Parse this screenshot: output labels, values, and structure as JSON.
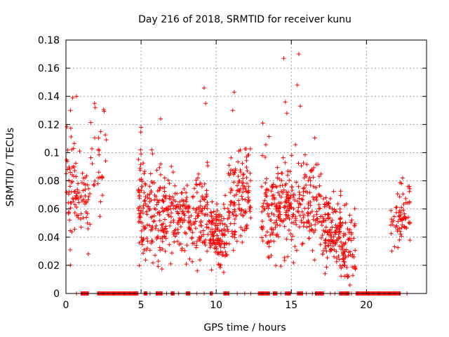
{
  "chart_data": {
    "type": "scatter",
    "title": "Day 216 of 2018, SRMTID for receiver kunu",
    "xlabel": "GPS time / hours",
    "ylabel": "SRMTID / TECUs",
    "xlim": [
      0,
      24
    ],
    "ylim": [
      0,
      0.18
    ],
    "x_ticks": [
      0,
      5,
      10,
      15,
      20
    ],
    "x_tick_labels": [
      "0",
      "5",
      "10",
      "15",
      "20"
    ],
    "y_ticks": [
      0,
      0.02,
      0.04,
      0.06,
      0.08,
      0.1,
      0.12,
      0.14,
      0.16,
      0.18
    ],
    "y_tick_labels": [
      "0",
      "0.02",
      "0.04",
      "0.06",
      "0.08",
      "0.1",
      "0.12",
      "0.14",
      "0.16",
      "0.18"
    ],
    "grid": true,
    "marker": "+",
    "color": "#ff0000",
    "clusters": [
      {
        "x_range": [
          0.0,
          0.7
        ],
        "y_mean": 0.075,
        "y_sd": 0.018,
        "count": 55
      },
      {
        "x_range": [
          0.7,
          1.6
        ],
        "y_mean": 0.068,
        "y_sd": 0.016,
        "count": 45
      },
      {
        "x_range": [
          1.6,
          2.8
        ],
        "y_mean": 0.085,
        "y_sd": 0.018,
        "count": 28
      },
      {
        "x_range": [
          4.8,
          6.0
        ],
        "y_mean": 0.062,
        "y_sd": 0.019,
        "count": 110
      },
      {
        "x_range": [
          6.0,
          7.5
        ],
        "y_mean": 0.055,
        "y_sd": 0.014,
        "count": 120
      },
      {
        "x_range": [
          7.5,
          9.5
        ],
        "y_mean": 0.055,
        "y_sd": 0.014,
        "count": 150
      },
      {
        "x_range": [
          9.5,
          10.8
        ],
        "y_mean": 0.043,
        "y_sd": 0.011,
        "count": 120
      },
      {
        "x_range": [
          10.8,
          12.3
        ],
        "y_mean": 0.066,
        "y_sd": 0.018,
        "count": 130
      },
      {
        "x_range": [
          13.0,
          14.3
        ],
        "y_mean": 0.058,
        "y_sd": 0.016,
        "count": 110
      },
      {
        "x_range": [
          14.3,
          15.4
        ],
        "y_mean": 0.062,
        "y_sd": 0.015,
        "count": 90
      },
      {
        "x_range": [
          15.4,
          17.0
        ],
        "y_mean": 0.06,
        "y_sd": 0.017,
        "count": 110
      },
      {
        "x_range": [
          17.0,
          18.3
        ],
        "y_mean": 0.046,
        "y_sd": 0.012,
        "count": 130
      },
      {
        "x_range": [
          18.3,
          19.3
        ],
        "y_mean": 0.03,
        "y_sd": 0.012,
        "count": 70
      },
      {
        "x_range": [
          21.6,
          22.2
        ],
        "y_mean": 0.05,
        "y_sd": 0.009,
        "count": 25
      },
      {
        "x_range": [
          22.2,
          22.9
        ],
        "y_mean": 0.058,
        "y_sd": 0.012,
        "count": 45
      }
    ],
    "outliers": [
      {
        "x": 0.45,
        "y": 0.139
      },
      {
        "x": 0.7,
        "y": 0.14
      },
      {
        "x": 0.3,
        "y": 0.13
      },
      {
        "x": 1.9,
        "y": 0.135
      },
      {
        "x": 1.95,
        "y": 0.132
      },
      {
        "x": 9.2,
        "y": 0.146
      },
      {
        "x": 9.3,
        "y": 0.135
      },
      {
        "x": 11.2,
        "y": 0.143
      },
      {
        "x": 11.1,
        "y": 0.13
      },
      {
        "x": 14.5,
        "y": 0.167
      },
      {
        "x": 15.5,
        "y": 0.17
      },
      {
        "x": 15.4,
        "y": 0.148
      },
      {
        "x": 15.6,
        "y": 0.133
      },
      {
        "x": 14.6,
        "y": 0.136
      },
      {
        "x": 14.7,
        "y": 0.128
      },
      {
        "x": 13.1,
        "y": 0.121
      },
      {
        "x": 5.0,
        "y": 0.118
      },
      {
        "x": 6.3,
        "y": 0.124
      },
      {
        "x": 18.9,
        "y": 0.006
      },
      {
        "x": 18.8,
        "y": 0.012
      },
      {
        "x": 10.5,
        "y": 0.015
      }
    ],
    "zero_segments": [
      [
        1.0,
        1.5
      ],
      [
        2.1,
        4.8
      ],
      [
        5.2,
        5.4
      ],
      [
        6.0,
        6.4
      ],
      [
        7.0,
        7.2
      ],
      [
        8.0,
        8.3
      ],
      [
        9.6,
        9.8
      ],
      [
        10.5,
        10.9
      ],
      [
        12.8,
        13.6
      ],
      [
        13.8,
        14.1
      ],
      [
        14.6,
        15.0
      ],
      [
        15.4,
        15.8
      ],
      [
        16.6,
        17.2
      ],
      [
        18.2,
        18.9
      ],
      [
        19.3,
        22.3
      ]
    ],
    "zero_ticks": [
      0.7,
      1.2,
      1.5,
      5.6,
      6.7,
      7.5,
      8.7,
      9.2,
      11.4,
      11.9,
      12.3,
      14.3,
      16.0,
      16.4,
      17.6,
      17.9,
      19.0,
      22.7
    ]
  }
}
